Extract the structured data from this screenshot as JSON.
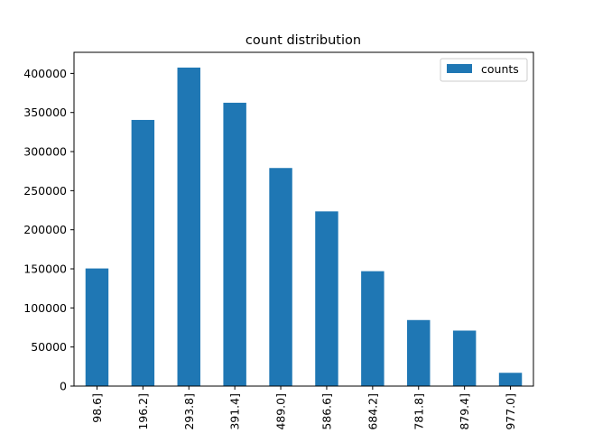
{
  "chart_data": {
    "type": "bar",
    "title": "count distribution",
    "xlabel": "",
    "ylabel": "",
    "categories": [
      "98.6]",
      "196.2]",
      "293.8]",
      "391.4]",
      "489.0]",
      "586.6]",
      "684.2]",
      "781.8]",
      "879.4]",
      "977.0]"
    ],
    "series": [
      {
        "name": "counts",
        "color": "#1f77b4",
        "values": [
          150500,
          340500,
          407500,
          362500,
          279000,
          223500,
          147000,
          84500,
          71000,
          17000
        ]
      }
    ],
    "ylim": [
      0,
      427000
    ],
    "yticks": [
      0,
      50000,
      100000,
      150000,
      200000,
      250000,
      300000,
      350000,
      400000
    ],
    "grid": false,
    "legend_position": "top-right"
  }
}
